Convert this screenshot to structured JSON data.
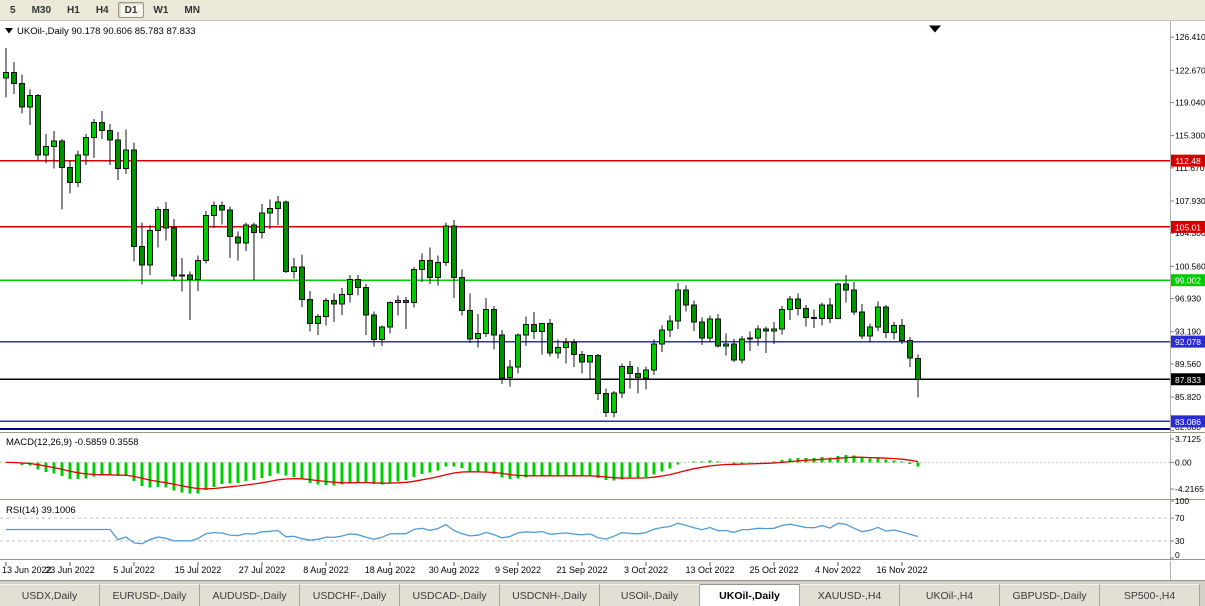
{
  "colors": {
    "bull": "#00cc00",
    "bear": "#009000",
    "wick": "#141414",
    "macd_hist": "#00cc00",
    "macd_signal": "#e00000",
    "rsi_line": "#4f9bd5",
    "dash_level": "#c0c0c0",
    "separator": "#9a968a",
    "axis_text": "#000000",
    "chart_bg": "#ffffff",
    "chrome_bg": "#ece9d8"
  },
  "toolbar": {
    "periods": [
      {
        "label": "5",
        "active": false
      },
      {
        "label": "M30",
        "active": false
      },
      {
        "label": "H1",
        "active": false
      },
      {
        "label": "H4",
        "active": false
      },
      {
        "label": "D1",
        "active": true
      },
      {
        "label": "W1",
        "active": false
      },
      {
        "label": "MN",
        "active": false
      }
    ]
  },
  "chart_data": {
    "type": "candlestick",
    "symbol": "UKOil-",
    "timeframe": "Daily",
    "title_text": "UKOil-,Daily  90.178 90.606 85.783 87.833",
    "last_candle": {
      "open": 90.178,
      "high": 90.606,
      "low": 85.783,
      "close": 87.833
    },
    "price_axis": {
      "range": [
        82.0,
        128.0
      ],
      "labels": [
        "126.410",
        "122.670",
        "119.040",
        "115.300",
        "111.670",
        "107.930",
        "104.300",
        "100.560",
        "96.930",
        "93.190",
        "89.560",
        "85.820",
        "82.080"
      ]
    },
    "hlines": [
      {
        "price": 112.48,
        "label": "112.48",
        "color": "#d40000",
        "width": 1.4
      },
      {
        "price": 105.01,
        "label": "105.01",
        "color": "#d40000",
        "width": 1.4
      },
      {
        "price": 99.002,
        "label": "99.002",
        "color": "#00cc00",
        "width": 1.6
      },
      {
        "price": 92.078,
        "label": "92.078",
        "color": "#2b2bd4",
        "width": 1.6
      },
      {
        "price": 87.833,
        "label": "87.833",
        "color": "#000000",
        "width": 1.2
      },
      {
        "price": 83.086,
        "label": "83.086",
        "color": "#2b2bd4",
        "width": 1.6
      },
      {
        "price": 82.2,
        "label": null,
        "color": "#000080",
        "width": 2.0
      }
    ],
    "date_labels": [
      "13 Jun 2022",
      "23 Jun 2022",
      "5 Jul 2022",
      "15 Jul 2022",
      "27 Jul 2022",
      "8 Aug 2022",
      "18 Aug 2022",
      "30 Aug 2022",
      "9 Sep 2022",
      "21 Sep 2022",
      "3 Oct 2022",
      "13 Oct 2022",
      "25 Oct 2022",
      "4 Nov 2022",
      "16 Nov 2022"
    ],
    "label_every": 8,
    "candles": [
      [
        121.8,
        125.2,
        119.6,
        122.4
      ],
      [
        122.4,
        123.6,
        120.0,
        121.2
      ],
      [
        121.2,
        122.2,
        117.8,
        118.5
      ],
      [
        118.5,
        120.5,
        116.5,
        119.8
      ],
      [
        119.8,
        120.0,
        112.5,
        113.1
      ],
      [
        113.1,
        115.5,
        112.2,
        114.1
      ],
      [
        114.1,
        115.8,
        111.6,
        114.7
      ],
      [
        114.7,
        114.9,
        107.0,
        111.7
      ],
      [
        111.7,
        112.5,
        108.8,
        110.0
      ],
      [
        110.0,
        113.6,
        109.5,
        113.1
      ],
      [
        113.1,
        115.5,
        112.0,
        115.1
      ],
      [
        115.1,
        117.2,
        112.8,
        116.8
      ],
      [
        116.8,
        118.1,
        114.9,
        115.9
      ],
      [
        115.9,
        116.6,
        112.0,
        114.8
      ],
      [
        114.8,
        115.7,
        110.3,
        111.6
      ],
      [
        111.6,
        116.0,
        111.0,
        113.7
      ],
      [
        113.7,
        114.5,
        101.1,
        102.8
      ],
      [
        102.8,
        105.5,
        98.5,
        100.7
      ],
      [
        100.7,
        105.2,
        99.6,
        104.6
      ],
      [
        104.6,
        107.3,
        102.7,
        107.0
      ],
      [
        107.0,
        107.8,
        103.5,
        104.9
      ],
      [
        104.9,
        105.9,
        98.9,
        99.5
      ],
      [
        99.5,
        101.5,
        97.7,
        99.6
      ],
      [
        99.6,
        100.0,
        94.5,
        99.1
      ],
      [
        99.1,
        101.8,
        97.8,
        101.2
      ],
      [
        101.2,
        106.8,
        100.9,
        106.3
      ],
      [
        106.3,
        107.9,
        104.9,
        107.4
      ],
      [
        107.4,
        107.9,
        105.3,
        106.9
      ],
      [
        106.9,
        107.3,
        101.5,
        103.9
      ],
      [
        103.9,
        104.5,
        101.2,
        103.2
      ],
      [
        103.2,
        105.5,
        102.3,
        105.2
      ],
      [
        105.2,
        105.5,
        99.0,
        104.4
      ],
      [
        104.4,
        107.6,
        103.7,
        106.6
      ],
      [
        106.6,
        108.1,
        104.8,
        107.1
      ],
      [
        107.1,
        108.5,
        105.2,
        107.8
      ],
      [
        107.8,
        108.0,
        99.8,
        100.0
      ],
      [
        100.0,
        101.5,
        99.2,
        100.5
      ],
      [
        100.5,
        101.9,
        96.0,
        96.8
      ],
      [
        96.8,
        97.8,
        93.2,
        94.1
      ],
      [
        94.1,
        95.2,
        92.8,
        94.9
      ],
      [
        94.9,
        97.0,
        93.9,
        96.7
      ],
      [
        96.7,
        97.5,
        94.3,
        96.3
      ],
      [
        96.3,
        98.1,
        95.1,
        97.4
      ],
      [
        97.4,
        99.6,
        96.5,
        99.1
      ],
      [
        99.1,
        99.6,
        97.3,
        98.2
      ],
      [
        98.2,
        98.6,
        92.8,
        95.1
      ],
      [
        95.1,
        95.5,
        91.5,
        92.3
      ],
      [
        92.3,
        93.9,
        91.6,
        93.7
      ],
      [
        93.7,
        96.6,
        93.0,
        96.5
      ],
      [
        96.5,
        97.3,
        95.0,
        96.7
      ],
      [
        96.7,
        97.1,
        93.5,
        96.5
      ],
      [
        96.5,
        100.5,
        95.9,
        100.2
      ],
      [
        100.2,
        102.0,
        98.8,
        101.2
      ],
      [
        101.2,
        102.7,
        98.6,
        99.3
      ],
      [
        99.3,
        101.8,
        98.4,
        101.0
      ],
      [
        101.0,
        105.5,
        100.6,
        105.1
      ],
      [
        105.1,
        105.8,
        97.0,
        99.3
      ],
      [
        99.3,
        100.2,
        95.0,
        95.6
      ],
      [
        95.6,
        97.5,
        91.9,
        92.4
      ],
      [
        92.4,
        95.2,
        91.4,
        93.0
      ],
      [
        93.0,
        97.0,
        92.6,
        95.7
      ],
      [
        95.7,
        96.1,
        91.2,
        92.8
      ],
      [
        92.8,
        93.4,
        87.3,
        88.0
      ],
      [
        88.0,
        90.0,
        87.0,
        89.2
      ],
      [
        89.2,
        93.0,
        88.5,
        92.8
      ],
      [
        92.8,
        94.9,
        91.6,
        94.0
      ],
      [
        94.0,
        95.4,
        92.4,
        93.2
      ],
      [
        93.2,
        94.2,
        90.6,
        94.1
      ],
      [
        94.1,
        94.6,
        90.4,
        90.8
      ],
      [
        90.8,
        92.3,
        90.2,
        91.4
      ],
      [
        91.4,
        92.5,
        89.6,
        92.0
      ],
      [
        92.0,
        92.4,
        89.2,
        90.6
      ],
      [
        90.6,
        91.0,
        88.5,
        89.8
      ],
      [
        89.8,
        90.5,
        87.9,
        90.5
      ],
      [
        90.5,
        90.7,
        85.5,
        86.2
      ],
      [
        86.2,
        86.8,
        83.6,
        84.1
      ],
      [
        84.1,
        86.5,
        83.5,
        86.3
      ],
      [
        86.3,
        89.6,
        85.7,
        89.3
      ],
      [
        89.3,
        89.9,
        86.8,
        88.5
      ],
      [
        88.5,
        89.2,
        86.2,
        88.0
      ],
      [
        88.0,
        89.3,
        86.7,
        88.9
      ],
      [
        88.9,
        92.3,
        88.3,
        91.8
      ],
      [
        91.8,
        93.9,
        90.9,
        93.4
      ],
      [
        93.4,
        95.0,
        92.6,
        94.4
      ],
      [
        94.4,
        98.7,
        93.5,
        97.9
      ],
      [
        97.9,
        98.4,
        95.5,
        96.2
      ],
      [
        96.2,
        96.7,
        93.3,
        94.3
      ],
      [
        94.3,
        94.8,
        91.7,
        92.5
      ],
      [
        92.5,
        95.0,
        92.0,
        94.6
      ],
      [
        94.6,
        95.2,
        91.4,
        91.6
      ],
      [
        91.6,
        93.0,
        90.5,
        91.8
      ],
      [
        91.8,
        92.4,
        89.8,
        90.0
      ],
      [
        90.0,
        92.7,
        89.6,
        92.4
      ],
      [
        92.4,
        93.2,
        91.0,
        92.5
      ],
      [
        92.5,
        93.9,
        91.6,
        93.5
      ],
      [
        93.5,
        93.8,
        90.8,
        93.3
      ],
      [
        93.3,
        94.3,
        91.8,
        93.5
      ],
      [
        93.5,
        96.1,
        92.9,
        95.7
      ],
      [
        95.7,
        97.2,
        94.5,
        96.9
      ],
      [
        96.9,
        97.5,
        95.0,
        95.8
      ],
      [
        95.8,
        96.2,
        93.8,
        94.8
      ],
      [
        94.8,
        95.7,
        93.6,
        94.7
      ],
      [
        94.7,
        96.5,
        93.9,
        96.2
      ],
      [
        96.2,
        97.0,
        94.2,
        94.7
      ],
      [
        94.7,
        98.7,
        94.6,
        98.6
      ],
      [
        98.6,
        99.6,
        96.5,
        97.9
      ],
      [
        97.9,
        98.8,
        95.1,
        95.4
      ],
      [
        95.4,
        96.3,
        92.4,
        92.7
      ],
      [
        92.7,
        94.1,
        92.0,
        93.7
      ],
      [
        93.7,
        96.6,
        93.3,
        96.0
      ],
      [
        96.0,
        96.2,
        92.5,
        93.1
      ],
      [
        93.1,
        94.3,
        92.3,
        93.9
      ],
      [
        93.9,
        94.6,
        91.8,
        92.2
      ],
      [
        92.2,
        92.6,
        89.2,
        90.2
      ],
      [
        90.178,
        90.606,
        85.783,
        87.833
      ]
    ],
    "indicators": {
      "macd": {
        "name": "MACD(12,26,9)",
        "label_text": "MACD(12,26,9) -0.5859 0.3558",
        "current_main": -0.5859,
        "current_signal": 0.3558,
        "fast": 12,
        "slow": 26,
        "signal": 9,
        "axis_labels": [
          {
            "value": 3.7125,
            "text": "3.7125"
          },
          {
            "value": 0,
            "text": "0.00"
          },
          {
            "value": -4.2165,
            "text": "-4.2165"
          }
        ]
      },
      "rsi": {
        "name": "RSI(14)",
        "label_text": "RSI(14) 39.1006",
        "current": 39.1006,
        "period": 14,
        "levels": [
          70,
          30
        ],
        "axis_labels": [
          {
            "value": 100,
            "text": "100"
          },
          {
            "value": 70,
            "text": "70"
          },
          {
            "value": 30,
            "text": "30"
          },
          {
            "value": 0,
            "text": "0"
          }
        ]
      }
    }
  },
  "tabs": [
    {
      "label": "USDX,Daily",
      "active": false
    },
    {
      "label": "EURUSD-,Daily",
      "active": false
    },
    {
      "label": "AUDUSD-,Daily",
      "active": false
    },
    {
      "label": "USDCHF-,Daily",
      "active": false
    },
    {
      "label": "USDCAD-,Daily",
      "active": false
    },
    {
      "label": "USDCNH-,Daily",
      "active": false
    },
    {
      "label": "USOil-,Daily",
      "active": false
    },
    {
      "label": "UKOil-,Daily",
      "active": true
    },
    {
      "label": "XAUUSD-,H4",
      "active": false
    },
    {
      "label": "UKOil-,H4",
      "active": false
    },
    {
      "label": "GBPUSD-,Daily",
      "active": false
    },
    {
      "label": "SP500-,H4",
      "active": false
    }
  ]
}
